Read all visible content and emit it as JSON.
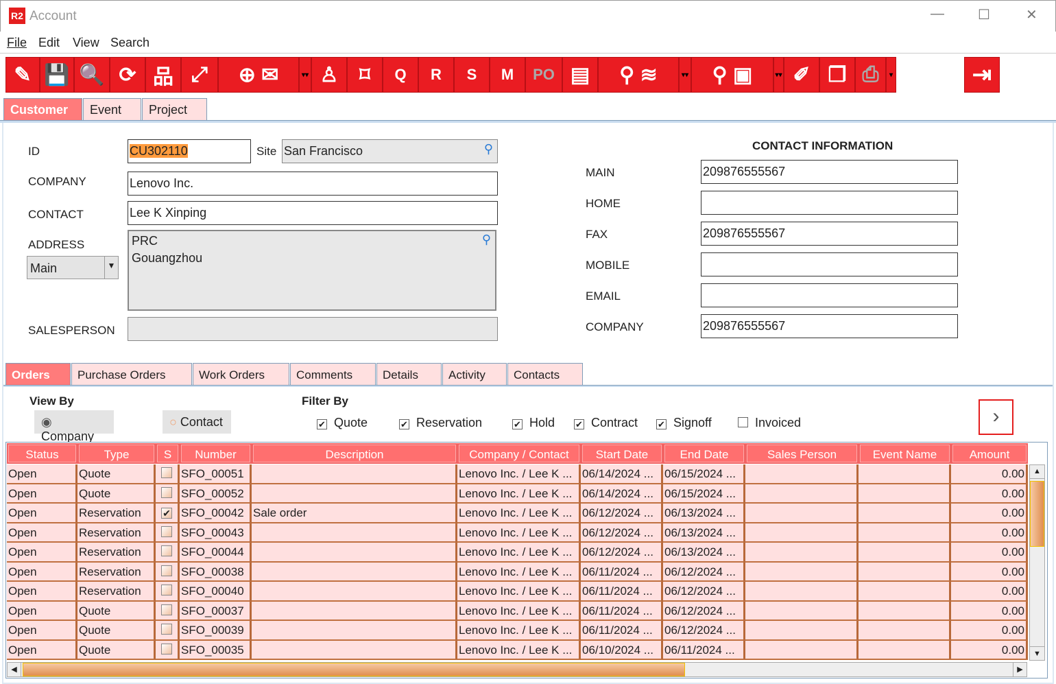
{
  "window": {
    "title": "Account",
    "logo": "R2"
  },
  "menu": [
    "File",
    "Edit",
    "View",
    "Search"
  ],
  "toolbar": [
    {
      "icon": "clear-broom-icon",
      "g": "✎"
    },
    {
      "icon": "save-icon",
      "g": "💾"
    },
    {
      "icon": "search-icon",
      "g": "🔍"
    },
    {
      "icon": "refresh-icon",
      "g": "⟳"
    },
    {
      "icon": "hierarchy-icon",
      "g": "品"
    },
    {
      "icon": "expand-icon",
      "g": "⤢"
    },
    {
      "icon": "add-email-icon",
      "g": "⊕ ✉"
    },
    {
      "icon": "dropdown-icon",
      "g": "▾▾"
    },
    {
      "icon": "user-stamp-icon",
      "g": "♙"
    },
    {
      "icon": "ticket-icon",
      "g": "⌑"
    },
    {
      "icon": "quote-doc-icon",
      "g": "Q"
    },
    {
      "icon": "reservation-doc-icon",
      "g": "R"
    },
    {
      "icon": "signoff-doc-icon",
      "g": "S"
    },
    {
      "icon": "memo-doc-icon",
      "g": "M"
    },
    {
      "icon": "po-doc-icon",
      "g": "PO"
    },
    {
      "icon": "cash-register-icon",
      "g": "▤"
    },
    {
      "icon": "search-layers-icon",
      "g": "⚲ ≋"
    },
    {
      "icon": "dropdown-icon",
      "g": "▾▾"
    },
    {
      "icon": "search-box-icon",
      "g": "⚲ ▣"
    },
    {
      "icon": "dropdown-icon",
      "g": "▾▾"
    },
    {
      "icon": "edit-card-icon",
      "g": "✐"
    },
    {
      "icon": "copy-doc-icon",
      "g": "❐"
    },
    {
      "icon": "print-icon",
      "g": "⎙"
    },
    {
      "icon": "dropdown-icon",
      "g": "▾"
    }
  ],
  "exit_icon": "exit-icon",
  "top_tabs": [
    "Customer",
    "Event",
    "Project"
  ],
  "form": {
    "id_label": "ID",
    "id_value": "CU302110",
    "site_label": "Site",
    "site_value": "San Francisco",
    "company_label": "COMPANY",
    "company_value": "Lenovo Inc.",
    "contact_label": "CONTACT",
    "contact_value": "Lee K Xinping",
    "address_label": "ADDRESS",
    "address_type": "Main",
    "address_line1": "PRC",
    "address_line2": "Gouangzhou",
    "salesperson_label": "SALESPERSON",
    "salesperson_value": ""
  },
  "contact_info": {
    "title": "CONTACT INFORMATION",
    "rows": [
      {
        "label": "MAIN",
        "value": "209876555567"
      },
      {
        "label": "HOME",
        "value": ""
      },
      {
        "label": "FAX",
        "value": "209876555567"
      },
      {
        "label": "MOBILE",
        "value": ""
      },
      {
        "label": "EMAIL",
        "value": ""
      },
      {
        "label": "COMPANY",
        "value": "209876555567"
      }
    ]
  },
  "sub_tabs": [
    "Orders",
    "Purchase Orders",
    "Work Orders",
    "Comments",
    "Details",
    "Activity",
    "Contacts"
  ],
  "view_by": {
    "label": "View By",
    "options": [
      "Company",
      "Contact"
    ],
    "selected": "Company"
  },
  "filter_by": {
    "label": "Filter By",
    "options": [
      {
        "label": "Quote",
        "checked": true
      },
      {
        "label": "Reservation",
        "checked": true
      },
      {
        "label": "Hold",
        "checked": true
      },
      {
        "label": "Contract",
        "checked": true
      },
      {
        "label": "Signoff",
        "checked": true
      },
      {
        "label": "Invoiced",
        "checked": false
      }
    ]
  },
  "table": {
    "columns": [
      "Status",
      "Type",
      "S",
      "Number",
      "Description",
      "Company / Contact",
      "Start Date",
      "End Date",
      "Sales Person",
      "Event Name",
      "Amount"
    ],
    "rows": [
      [
        "Open",
        "Quote",
        false,
        "SFO_00051",
        "",
        "Lenovo Inc. / Lee K ...",
        "06/14/2024 ...",
        "06/15/2024 ...",
        "",
        "",
        "0.00"
      ],
      [
        "Open",
        "Quote",
        false,
        "SFO_00052",
        "",
        "Lenovo Inc. / Lee K ...",
        "06/14/2024 ...",
        "06/15/2024 ...",
        "",
        "",
        "0.00"
      ],
      [
        "Open",
        "Reservation",
        true,
        "SFO_00042",
        "Sale order",
        "Lenovo Inc. / Lee K ...",
        "06/12/2024 ...",
        "06/13/2024 ...",
        "",
        "",
        "0.00"
      ],
      [
        "Open",
        "Reservation",
        false,
        "SFO_00043",
        "",
        "Lenovo Inc. / Lee K ...",
        "06/12/2024 ...",
        "06/13/2024 ...",
        "",
        "",
        "0.00"
      ],
      [
        "Open",
        "Reservation",
        false,
        "SFO_00044",
        "",
        "Lenovo Inc. / Lee K ...",
        "06/12/2024 ...",
        "06/13/2024 ...",
        "",
        "",
        "0.00"
      ],
      [
        "Open",
        "Reservation",
        false,
        "SFO_00038",
        "",
        "Lenovo Inc. / Lee K ...",
        "06/11/2024 ...",
        "06/12/2024 ...",
        "",
        "",
        "0.00"
      ],
      [
        "Open",
        "Reservation",
        false,
        "SFO_00040",
        "",
        "Lenovo Inc. / Lee K ...",
        "06/11/2024 ...",
        "06/12/2024 ...",
        "",
        "",
        "0.00"
      ],
      [
        "Open",
        "Quote",
        false,
        "SFO_00037",
        "",
        "Lenovo Inc. / Lee K ...",
        "06/11/2024 ...",
        "06/12/2024 ...",
        "",
        "",
        "0.00"
      ],
      [
        "Open",
        "Quote",
        false,
        "SFO_00039",
        "",
        "Lenovo Inc. / Lee K ...",
        "06/11/2024 ...",
        "06/12/2024 ...",
        "",
        "",
        "0.00"
      ],
      [
        "Open",
        "Quote",
        false,
        "SFO_00035",
        "",
        "Lenovo Inc. / Lee K ...",
        "06/10/2024 ...",
        "06/11/2024 ...",
        "",
        "",
        "0.00"
      ]
    ]
  },
  "colors": {
    "accent": "#ea1c22",
    "header": "#ff6f6f",
    "row": "#ffe0e0",
    "grid": "#b8693a"
  }
}
